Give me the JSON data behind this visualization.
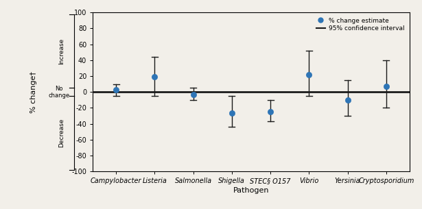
{
  "pathogens": [
    "Campylobacter",
    "Listeria",
    "Salmonella",
    "Shigella",
    "STEC§ O157",
    "Vibrio",
    "Yersinia",
    "Cryptosporidium"
  ],
  "estimates": [
    3,
    19,
    -3,
    -27,
    -25,
    22,
    -10,
    7
  ],
  "ci_low": [
    -5,
    -5,
    -10,
    -44,
    -37,
    -5,
    -30,
    -20
  ],
  "ci_high": [
    10,
    44,
    5,
    -5,
    -10,
    52,
    15,
    40
  ],
  "dot_color": "#2E75B6",
  "line_color": "#1a1a1a",
  "zero_line_color": "#1a1a1a",
  "xlabel": "Pathogen",
  "ylabel": "% change†",
  "ylim": [
    -100,
    100
  ],
  "yticks": [
    -100,
    -80,
    -60,
    -40,
    -20,
    0,
    20,
    40,
    60,
    80,
    100
  ],
  "legend_dot_label": "% change estimate",
  "legend_line_label": "95% confidence interval",
  "increase_label": "Increase",
  "no_change_label": "No\nchange",
  "decrease_label": "Decrease",
  "bg_color": "#f2efe9"
}
